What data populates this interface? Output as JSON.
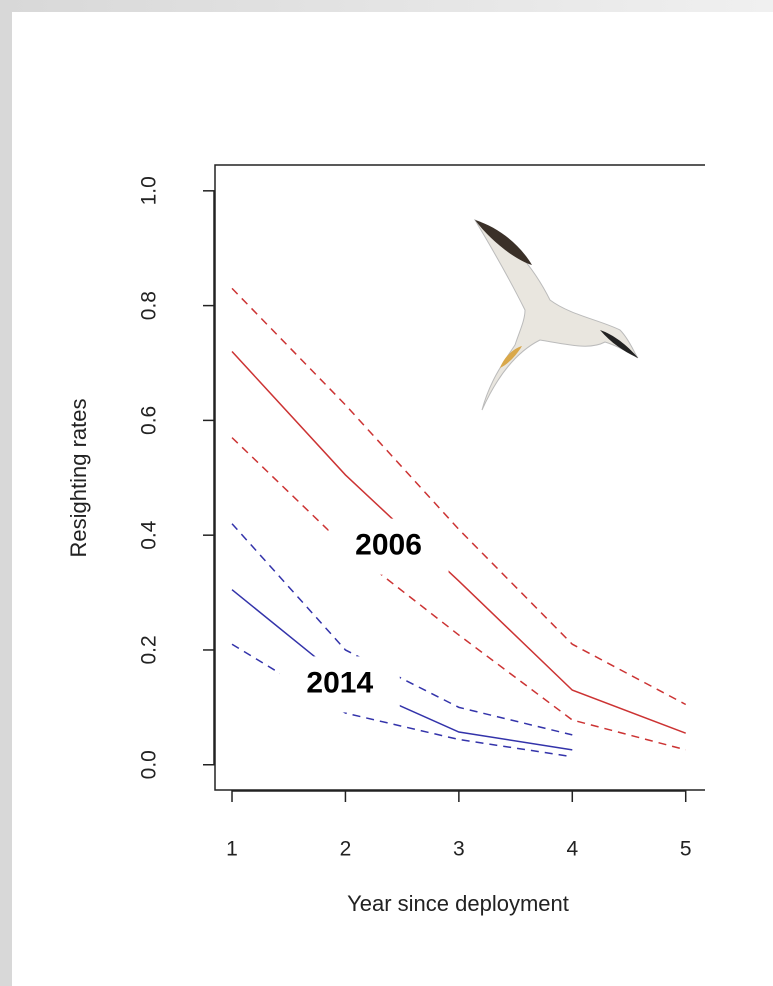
{
  "chart_data": {
    "type": "line",
    "xlabel": "Year since deployment",
    "ylabel": "Resighting rates",
    "xlim": [
      0.85,
      5.17
    ],
    "ylim": [
      -0.044,
      1.045
    ],
    "xticks": [
      1,
      2,
      3,
      4,
      5
    ],
    "yticks": [
      {
        "value": 0,
        "label": "0.0"
      },
      0.2,
      0.4,
      0.6,
      0.8,
      {
        "value": 1,
        "label": "1.0"
      }
    ],
    "series": [
      {
        "color": "#cc3333",
        "dash": false,
        "x": [
          1,
          2,
          3,
          4,
          5
        ],
        "values": [
          0.72,
          0.505,
          0.32,
          0.13,
          0.055
        ]
      },
      {
        "color": "#cc3333",
        "dash": true,
        "x": [
          1,
          2,
          3,
          4,
          5
        ],
        "values": [
          0.83,
          0.627,
          0.41,
          0.21,
          0.105
        ]
      },
      {
        "color": "#cc3333",
        "dash": true,
        "x": [
          1,
          2,
          3,
          4,
          5
        ],
        "values": [
          0.57,
          0.38,
          0.226,
          0.078,
          0.026
        ]
      },
      {
        "color": "#3333aa",
        "dash": false,
        "x": [
          1,
          2,
          3,
          4
        ],
        "values": [
          0.305,
          0.145,
          0.057,
          0.026
        ]
      },
      {
        "color": "#3333aa",
        "dash": true,
        "x": [
          1,
          2,
          3,
          4
        ],
        "values": [
          0.42,
          0.2,
          0.1,
          0.052
        ]
      },
      {
        "color": "#3333aa",
        "dash": true,
        "x": [
          1,
          2,
          3,
          4
        ],
        "values": [
          0.21,
          0.09,
          0.044,
          0.014
        ]
      }
    ],
    "annotations": [
      {
        "text": "2006",
        "x": 2.38,
        "y": 0.38
      },
      {
        "text": "2014",
        "x": 1.95,
        "y": 0.14
      }
    ]
  }
}
